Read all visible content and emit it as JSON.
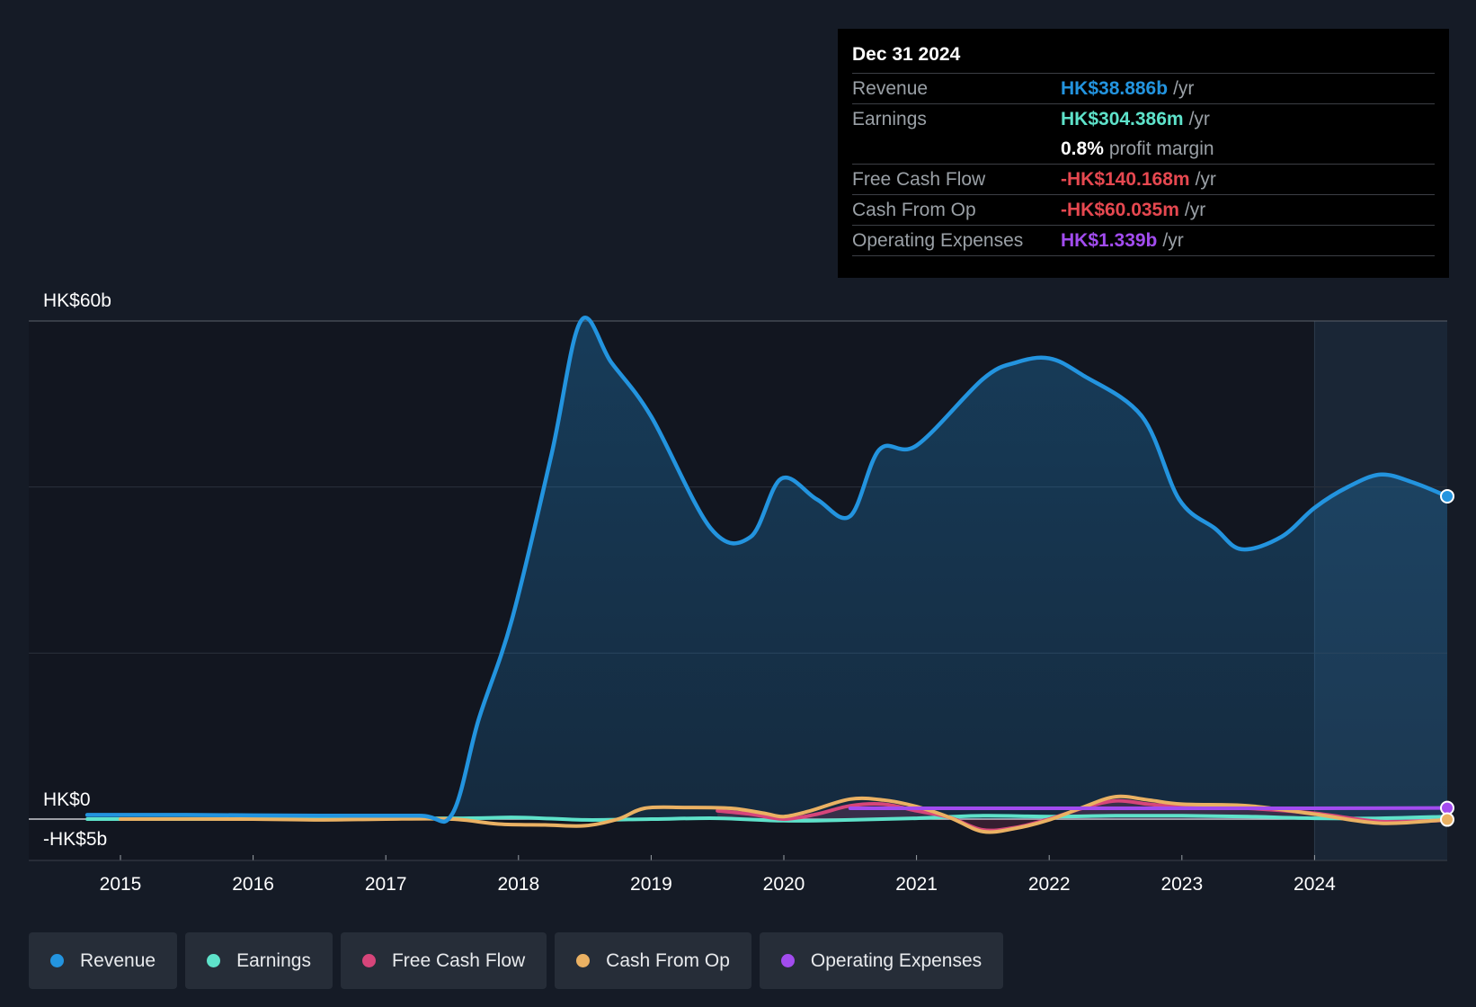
{
  "colors": {
    "background": "#151b26",
    "revenue": "#2394df",
    "earnings": "#5ee2ca",
    "free_cash_flow": "#d6457a",
    "cash_from_op": "#eab163",
    "operating_expenses": "#a24cef",
    "negative": "#e64850"
  },
  "tooltip": {
    "date": "Dec 31 2024",
    "rows": {
      "revenue": {
        "label": "Revenue",
        "value": "HK$38.886b",
        "unit": "/yr"
      },
      "earnings": {
        "label": "Earnings",
        "value": "HK$304.386m",
        "unit": "/yr"
      },
      "margin": {
        "value": "0.8%",
        "text": "profit margin"
      },
      "fcf": {
        "label": "Free Cash Flow",
        "value": "-HK$140.168m",
        "unit": "/yr"
      },
      "cfo": {
        "label": "Cash From Op",
        "value": "-HK$60.035m",
        "unit": "/yr"
      },
      "opex": {
        "label": "Operating Expenses",
        "value": "HK$1.339b",
        "unit": "/yr"
      }
    }
  },
  "legend": [
    {
      "label": "Revenue",
      "color": "#2394df"
    },
    {
      "label": "Earnings",
      "color": "#5ee2ca"
    },
    {
      "label": "Free Cash Flow",
      "color": "#d6457a"
    },
    {
      "label": "Cash From Op",
      "color": "#eab163"
    },
    {
      "label": "Operating Expenses",
      "color": "#a24cef"
    }
  ],
  "chart_data": {
    "type": "area",
    "title": "",
    "xlabel": "",
    "ylabel": "",
    "unit": "HK$ billions",
    "ylim": [
      -5,
      60
    ],
    "xlim": [
      2014.3,
      2025.0
    ],
    "y_tick_labels": [
      {
        "value": 60,
        "label": "HK$60b"
      },
      {
        "value": 0,
        "label": "HK$0"
      },
      {
        "value": -5,
        "label": "-HK$5b"
      }
    ],
    "gridlines": [
      60,
      40,
      20,
      0
    ],
    "x_ticks": [
      2015,
      2016,
      2017,
      2018,
      2019,
      2020,
      2021,
      2022,
      2023,
      2024
    ],
    "highlight_from": 2024.0,
    "series": [
      {
        "name": "Revenue",
        "key": "revenue",
        "filled": true,
        "points": [
          [
            2014.75,
            0.5
          ],
          [
            2015.5,
            0.5
          ],
          [
            2016.5,
            0.4
          ],
          [
            2017.25,
            0.4
          ],
          [
            2017.5,
            0.6
          ],
          [
            2017.7,
            12
          ],
          [
            2017.95,
            24
          ],
          [
            2018.25,
            44
          ],
          [
            2018.47,
            60
          ],
          [
            2018.7,
            55
          ],
          [
            2019.0,
            48.5
          ],
          [
            2019.45,
            35
          ],
          [
            2019.75,
            34
          ],
          [
            2019.98,
            41
          ],
          [
            2020.25,
            38.5
          ],
          [
            2020.5,
            36.5
          ],
          [
            2020.72,
            44.5
          ],
          [
            2021.0,
            45
          ],
          [
            2021.5,
            53
          ],
          [
            2021.75,
            55
          ],
          [
            2022.0,
            55.5
          ],
          [
            2022.25,
            53.5
          ],
          [
            2022.7,
            48.5
          ],
          [
            2022.98,
            38.5
          ],
          [
            2023.25,
            35
          ],
          [
            2023.45,
            32.5
          ],
          [
            2023.75,
            34
          ],
          [
            2024.0,
            37.5
          ],
          [
            2024.25,
            40
          ],
          [
            2024.5,
            41.5
          ],
          [
            2024.75,
            40.5
          ],
          [
            2025.0,
            38.886
          ]
        ]
      },
      {
        "name": "Earnings",
        "key": "earnings",
        "filled": false,
        "points": [
          [
            2014.75,
            0.0
          ],
          [
            2015.5,
            0.0
          ],
          [
            2017.5,
            0.1
          ],
          [
            2018.0,
            0.2
          ],
          [
            2018.5,
            -0.1
          ],
          [
            2019.0,
            0.0
          ],
          [
            2019.5,
            0.1
          ],
          [
            2020.0,
            -0.2
          ],
          [
            2020.5,
            -0.1
          ],
          [
            2021.0,
            0.1
          ],
          [
            2021.5,
            0.4
          ],
          [
            2022.0,
            0.3
          ],
          [
            2022.5,
            0.4
          ],
          [
            2023.0,
            0.4
          ],
          [
            2023.5,
            0.3
          ],
          [
            2024.0,
            0.1
          ],
          [
            2024.5,
            0.1
          ],
          [
            2025.0,
            0.304
          ]
        ]
      },
      {
        "name": "Free Cash Flow",
        "key": "free_cash_flow",
        "filled": false,
        "points": [
          [
            2019.5,
            1.0
          ],
          [
            2019.75,
            0.6
          ],
          [
            2020.0,
            0.0
          ],
          [
            2020.25,
            0.6
          ],
          [
            2020.5,
            1.6
          ],
          [
            2020.75,
            1.8
          ],
          [
            2021.0,
            1.0
          ],
          [
            2021.25,
            0.2
          ],
          [
            2021.5,
            -1.3
          ],
          [
            2021.75,
            -1.0
          ],
          [
            2022.0,
            0.0
          ],
          [
            2022.25,
            1.3
          ],
          [
            2022.5,
            2.2
          ],
          [
            2022.75,
            1.8
          ],
          [
            2023.0,
            1.5
          ],
          [
            2023.5,
            1.3
          ],
          [
            2024.0,
            0.7
          ],
          [
            2024.5,
            -0.3
          ],
          [
            2025.0,
            -0.14
          ]
        ]
      },
      {
        "name": "Cash From Op",
        "key": "cash_from_op",
        "filled": false,
        "points": [
          [
            2015.0,
            0.0
          ],
          [
            2016.0,
            0.0
          ],
          [
            2016.5,
            -0.1
          ],
          [
            2017.0,
            0.0
          ],
          [
            2017.5,
            0.0
          ],
          [
            2017.85,
            -0.6
          ],
          [
            2018.2,
            -0.7
          ],
          [
            2018.5,
            -0.8
          ],
          [
            2018.75,
            0.0
          ],
          [
            2018.95,
            1.3
          ],
          [
            2019.25,
            1.4
          ],
          [
            2019.6,
            1.3
          ],
          [
            2019.85,
            0.7
          ],
          [
            2020.0,
            0.3
          ],
          [
            2020.2,
            1.0
          ],
          [
            2020.5,
            2.4
          ],
          [
            2020.75,
            2.3
          ],
          [
            2021.0,
            1.5
          ],
          [
            2021.25,
            0.2
          ],
          [
            2021.5,
            -1.5
          ],
          [
            2021.75,
            -1.1
          ],
          [
            2022.0,
            -0.1
          ],
          [
            2022.25,
            1.4
          ],
          [
            2022.5,
            2.7
          ],
          [
            2022.75,
            2.3
          ],
          [
            2023.0,
            1.8
          ],
          [
            2023.5,
            1.6
          ],
          [
            2024.0,
            0.6
          ],
          [
            2024.5,
            -0.5
          ],
          [
            2025.0,
            -0.06
          ]
        ]
      },
      {
        "name": "Operating Expenses",
        "key": "operating_expenses",
        "filled": false,
        "points": [
          [
            2020.5,
            1.3
          ],
          [
            2021.0,
            1.3
          ],
          [
            2022.0,
            1.3
          ],
          [
            2023.0,
            1.3
          ],
          [
            2024.0,
            1.3
          ],
          [
            2025.0,
            1.339
          ]
        ]
      }
    ]
  }
}
